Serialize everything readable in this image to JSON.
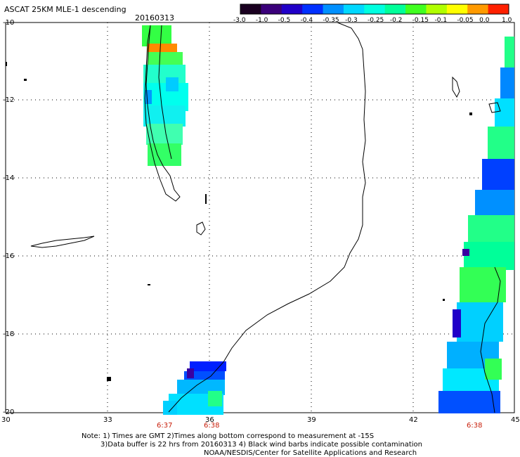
{
  "title": "ASCAT 25KM MLE-1 descending",
  "date": "20160313",
  "colorbar": {
    "tick_labels": [
      "-3.0",
      "-1.0",
      "-0.5",
      "-0.4",
      "-0.35",
      "-0.3",
      "-0.25",
      "-0.2",
      "-0.15",
      "-0.1",
      "-0.05",
      "0.0",
      "1.0"
    ],
    "colors": [
      "#1a0020",
      "#3a007a",
      "#2000c8",
      "#0030ff",
      "#0090ff",
      "#00d8ff",
      "#00ffe0",
      "#00ff9a",
      "#40ff20",
      "#b0ff00",
      "#ffff00",
      "#ff9a00",
      "#ff2000"
    ]
  },
  "lat_labels": [
    "-10",
    "-12",
    "-14",
    "-16",
    "-18",
    "-20"
  ],
  "lon_labels": [
    "30",
    "33",
    "36",
    "39",
    "42",
    "45"
  ],
  "time_labels": [
    "6:37",
    "6:38",
    "6:38"
  ],
  "notes": {
    "line1": "Note: 1) Times are GMT 2)Times along bottom correspond to measurement at -15S",
    "line2": "3)Data buffer is 22 hrs from 20160313 4) Black wind barbs indicate possible contamination",
    "line3": "NOAA/NESDIS/Center for Satellite Applications and Research"
  },
  "map": {
    "grid": "dotted",
    "lat_range": [
      -20,
      -10
    ],
    "lon_range": [
      30,
      45
    ]
  }
}
